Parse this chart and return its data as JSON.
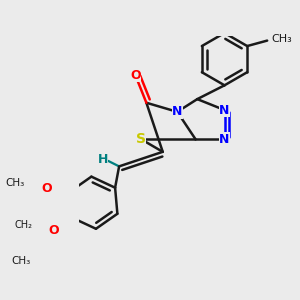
{
  "bg_color": "#ebebeb",
  "bond_color": "#1a1a1a",
  "bond_width": 1.8,
  "N_color": "#0000ff",
  "S_color": "#c8c800",
  "O_color": "#ff0000",
  "H_color": "#008080",
  "figsize": [
    3.0,
    3.0
  ],
  "dpi": 100,
  "xlim": [
    -2.5,
    3.5
  ],
  "ylim": [
    -3.5,
    2.5
  ]
}
